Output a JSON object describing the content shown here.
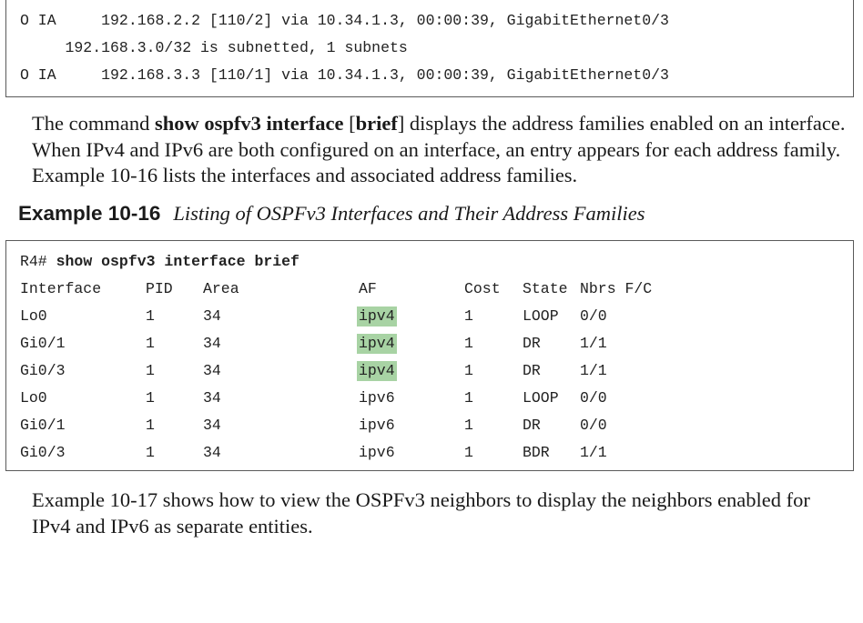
{
  "top_code": {
    "lines": [
      "O IA     192.168.2.2 [110/2] via 10.34.1.3, 00:00:39, GigabitEthernet0/3",
      "     192.168.3.0/32 is subnetted, 1 subnets",
      "O IA     192.168.3.3 [110/1] via 10.34.1.3, 00:00:39, GigabitEthernet0/3"
    ]
  },
  "paragraph1": {
    "t1": "The command ",
    "cmd": "show ospfv3 interface",
    "t2": " [",
    "opt": "brief",
    "t3": "] displays the address families enabled on an interface. When IPv4 and IPv6 are both configured on an interface, an entry appears for each address family. Example 10-16 lists the interfaces and associated address families."
  },
  "caption": {
    "label": "Example 10-16",
    "title": "Listing of OSPFv3 Interfaces and Their Address Families"
  },
  "example_code": {
    "prompt": "R4# ",
    "command": "show ospfv3 interface brief",
    "headers": {
      "interface": "Interface",
      "pid": "PID",
      "area": "Area",
      "af": "AF",
      "cost": "Cost",
      "state": "State",
      "nbrs": "Nbrs F/C"
    },
    "rows": [
      {
        "interface": "Lo0",
        "pid": "1",
        "area": "34",
        "af": "ipv4",
        "cost": "1",
        "state": "LOOP",
        "nbrs": "0/0"
      },
      {
        "interface": "Gi0/1",
        "pid": "1",
        "area": "34",
        "af": "ipv4",
        "cost": "1",
        "state": "DR",
        "nbrs": "1/1"
      },
      {
        "interface": "Gi0/3",
        "pid": "1",
        "area": "34",
        "af": "ipv4",
        "cost": "1",
        "state": "DR",
        "nbrs": "1/1"
      },
      {
        "interface": "Lo0",
        "pid": "1",
        "area": "34",
        "af": "ipv6",
        "cost": "1",
        "state": "LOOP",
        "nbrs": "0/0"
      },
      {
        "interface": "Gi0/1",
        "pid": "1",
        "area": "34",
        "af": "ipv6",
        "cost": "1",
        "state": "DR",
        "nbrs": "0/0"
      },
      {
        "interface": "Gi0/3",
        "pid": "1",
        "area": "34",
        "af": "ipv6",
        "cost": "1",
        "state": "BDR",
        "nbrs": "1/1"
      }
    ],
    "highlight_color": "#a8d3a4"
  },
  "paragraph2": {
    "text": "Example 10-17 shows how to view the OSPFv3 neighbors to display the neighbors enabled for IPv4 and IPv6 as separate entities."
  }
}
